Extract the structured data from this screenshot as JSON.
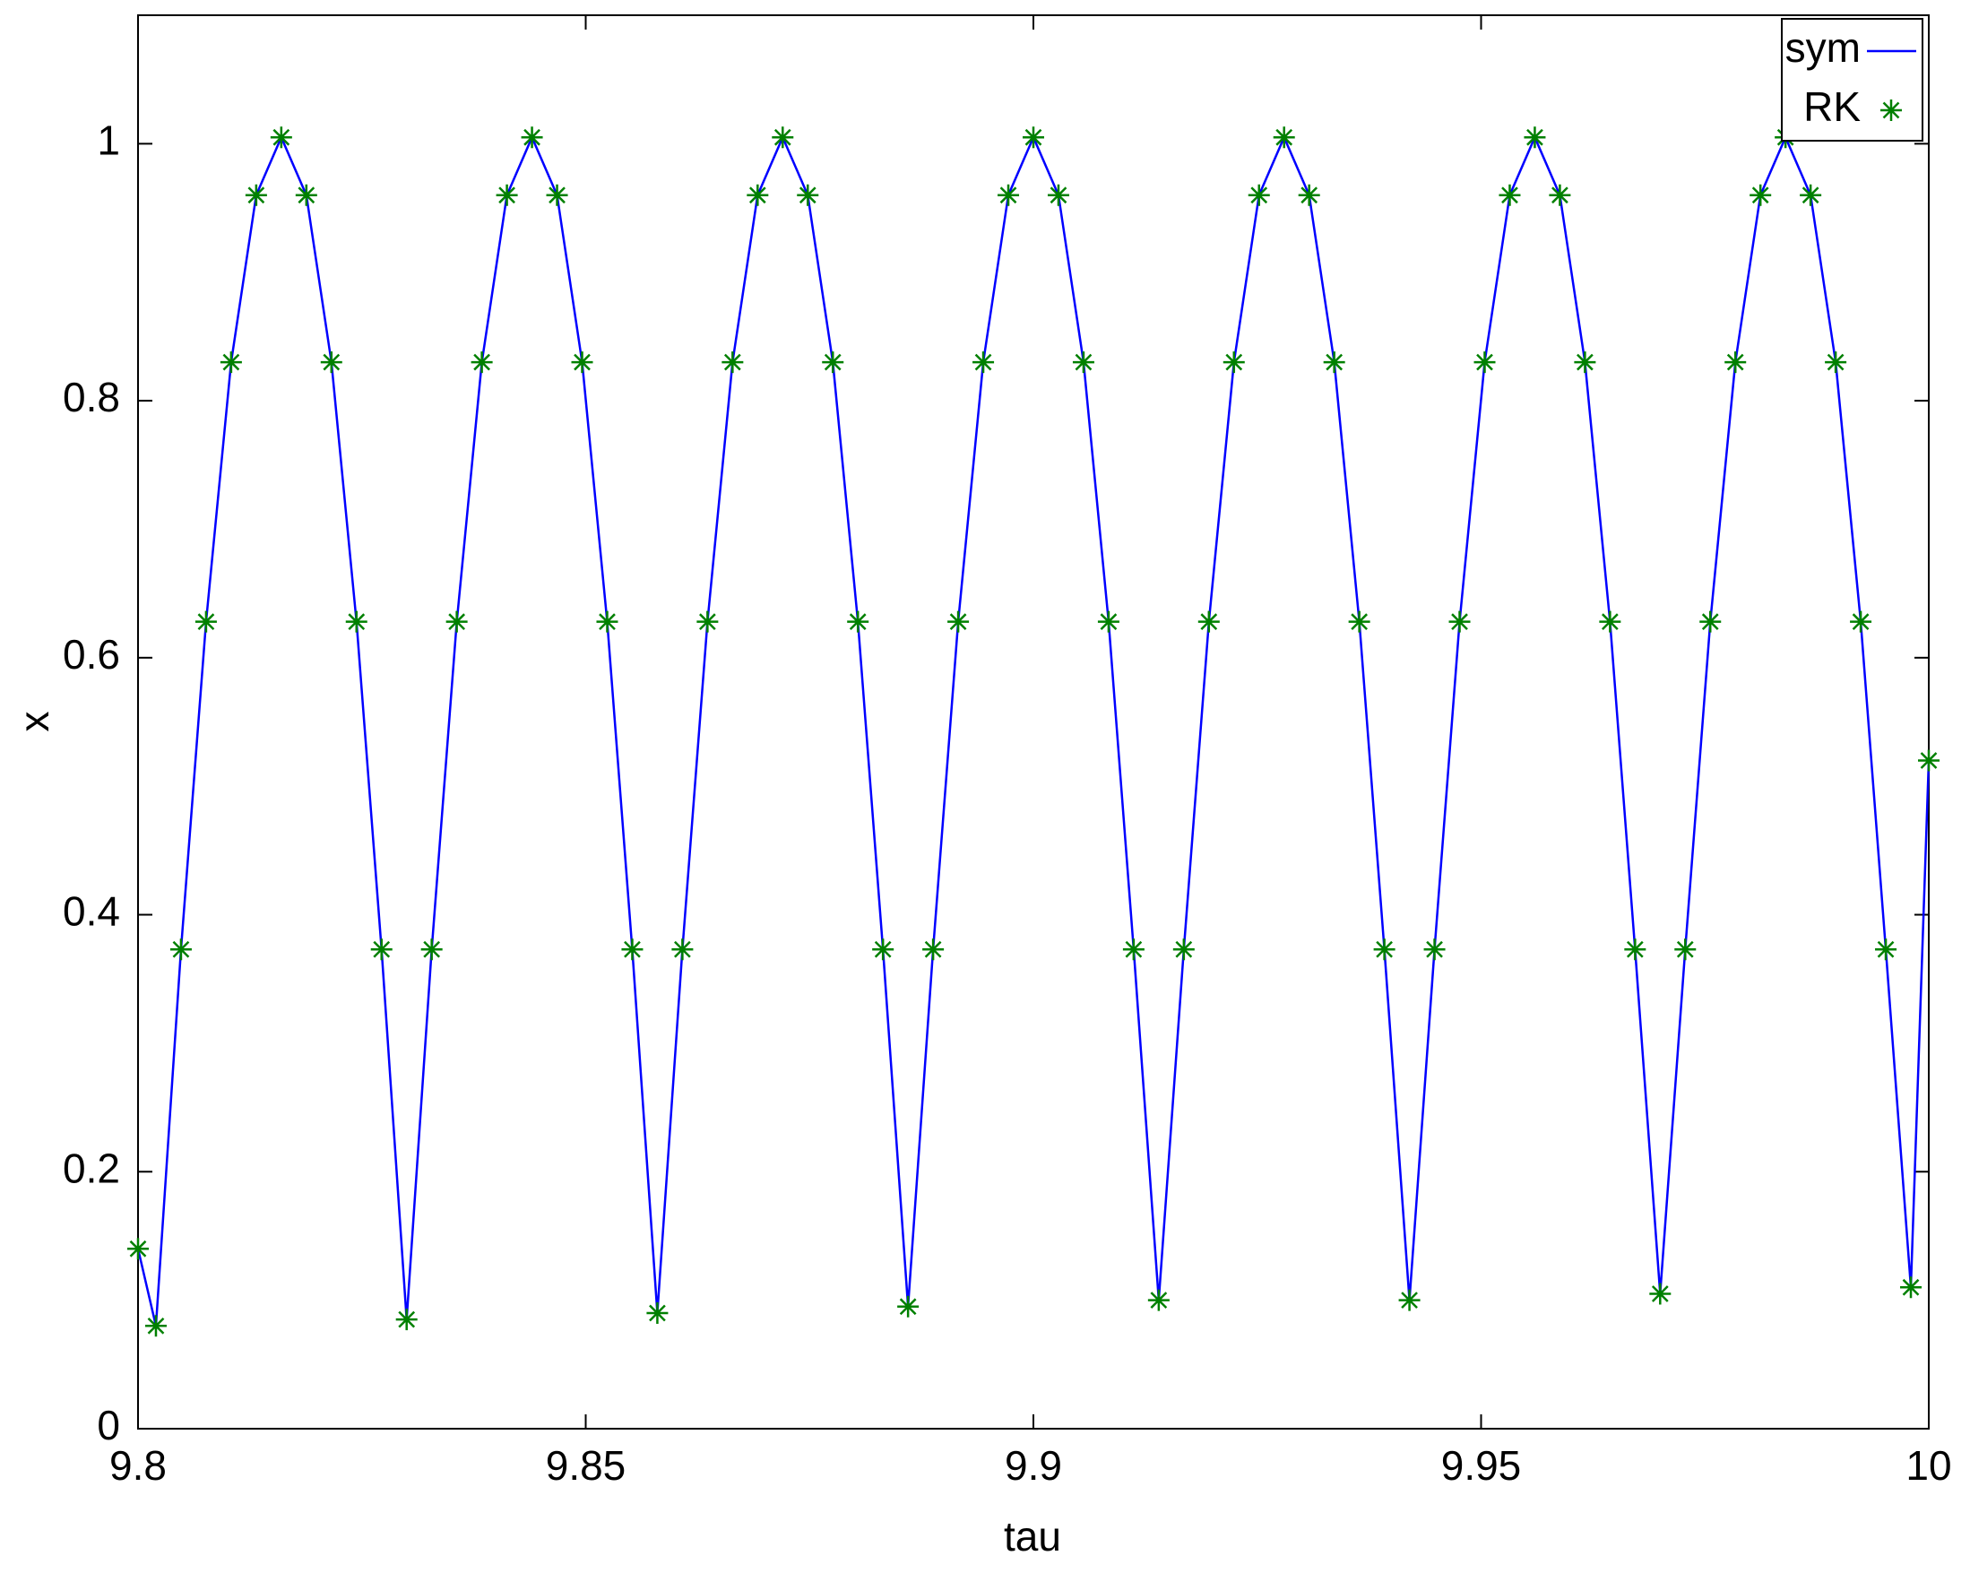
{
  "chart_data": {
    "type": "line",
    "xlabel": "tau",
    "ylabel": "x",
    "xlim": [
      9.8,
      10
    ],
    "ylim": [
      0,
      1.1
    ],
    "xticks": [
      9.8,
      9.85,
      9.9,
      9.95,
      10
    ],
    "yticks": [
      0,
      0.2,
      0.4,
      0.6,
      0.8,
      1
    ],
    "legend": "top-right",
    "x": [
      9.8,
      9.802,
      9.8048,
      9.8076,
      9.8104,
      9.8132,
      9.816,
      9.8188,
      9.8216,
      9.8244,
      9.8272,
      9.83,
      9.8328,
      9.8356,
      9.8384,
      9.8412,
      9.844,
      9.8468,
      9.8496,
      9.8524,
      9.8552,
      9.858,
      9.8608,
      9.8636,
      9.8664,
      9.8692,
      9.872,
      9.8748,
      9.8776,
      9.8804,
      9.8832,
      9.886,
      9.8888,
      9.8916,
      9.8944,
      9.8972,
      9.9,
      9.9028,
      9.9056,
      9.9084,
      9.9112,
      9.914,
      9.9168,
      9.9196,
      9.9224,
      9.9252,
      9.928,
      9.9308,
      9.9336,
      9.9364,
      9.9392,
      9.942,
      9.9448,
      9.9476,
      9.9504,
      9.9532,
      9.956,
      9.9588,
      9.9616,
      9.9644,
      9.9672,
      9.97,
      9.9728,
      9.9756,
      9.9784,
      9.9812,
      9.984,
      9.9868,
      9.9896,
      9.9924,
      9.9952,
      9.998,
      10
    ],
    "series": [
      {
        "name": "sym",
        "color": "#0000ff",
        "style": "line",
        "values": [
          0.14,
          0.08,
          0.373,
          0.628,
          0.83,
          0.96,
          1.005,
          0.96,
          0.83,
          0.628,
          0.373,
          0.085,
          0.373,
          0.628,
          0.83,
          0.96,
          1.005,
          0.96,
          0.83,
          0.628,
          0.373,
          0.09,
          0.373,
          0.628,
          0.83,
          0.96,
          1.005,
          0.96,
          0.83,
          0.628,
          0.373,
          0.095,
          0.373,
          0.628,
          0.83,
          0.96,
          1.005,
          0.96,
          0.83,
          0.628,
          0.373,
          0.1,
          0.373,
          0.628,
          0.83,
          0.96,
          1.005,
          0.96,
          0.83,
          0.628,
          0.373,
          0.1,
          0.373,
          0.628,
          0.83,
          0.96,
          1.005,
          0.96,
          0.83,
          0.628,
          0.373,
          0.105,
          0.373,
          0.628,
          0.83,
          0.96,
          1.005,
          0.96,
          0.83,
          0.628,
          0.373,
          0.11,
          0.52
        ]
      },
      {
        "name": "RK",
        "color": "#008000",
        "style": "marker",
        "values": [
          0.14,
          0.08,
          0.373,
          0.628,
          0.83,
          0.96,
          1.005,
          0.96,
          0.83,
          0.628,
          0.373,
          0.085,
          0.373,
          0.628,
          0.83,
          0.96,
          1.005,
          0.96,
          0.83,
          0.628,
          0.373,
          0.09,
          0.373,
          0.628,
          0.83,
          0.96,
          1.005,
          0.96,
          0.83,
          0.628,
          0.373,
          0.095,
          0.373,
          0.628,
          0.83,
          0.96,
          1.005,
          0.96,
          0.83,
          0.628,
          0.373,
          0.1,
          0.373,
          0.628,
          0.83,
          0.96,
          1.005,
          0.96,
          0.83,
          0.628,
          0.373,
          0.1,
          0.373,
          0.628,
          0.83,
          0.96,
          1.005,
          0.96,
          0.83,
          0.628,
          0.373,
          0.105,
          0.373,
          0.628,
          0.83,
          0.96,
          1.005,
          0.96,
          0.83,
          0.628,
          0.373,
          0.11,
          0.52
        ]
      }
    ]
  }
}
